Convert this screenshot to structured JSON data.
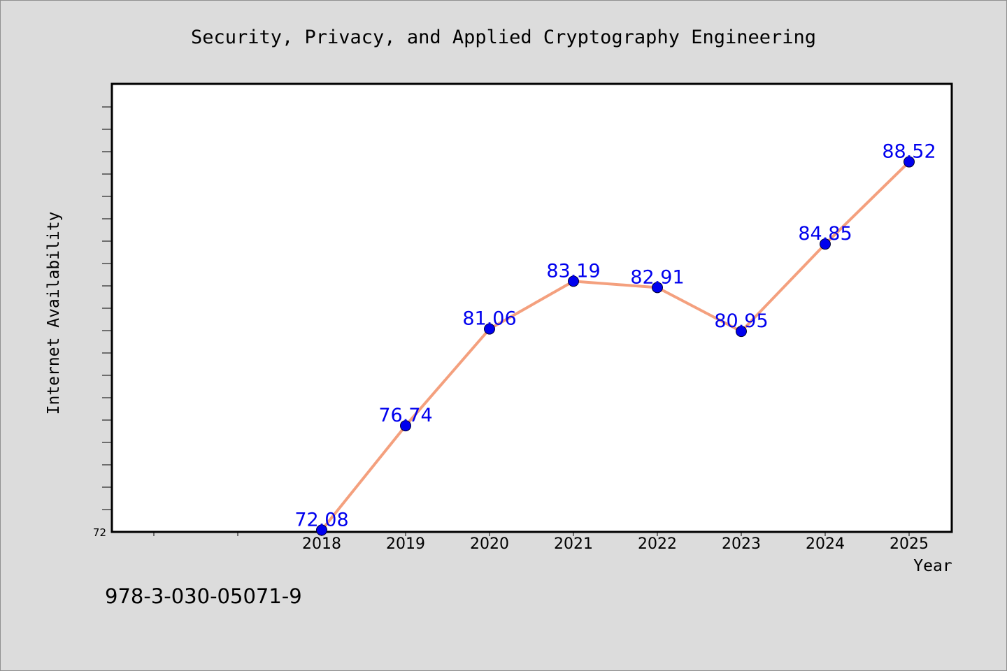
{
  "chart_data": {
    "type": "line",
    "title": "Security, Privacy, and Applied Cryptography Engineering",
    "xlabel": "Year",
    "ylabel": "Internet Availability",
    "categories": [
      "2018",
      "2019",
      "2020",
      "2021",
      "2022",
      "2023",
      "2024",
      "2025"
    ],
    "series": [
      {
        "values": [
          72.08,
          76.74,
          81.06,
          83.19,
          82.91,
          80.95,
          84.85,
          88.52
        ],
        "labels": [
          "72.08",
          "76.74",
          "81.06",
          "83.19",
          "82.91",
          "80.95",
          "84.85",
          "88.52"
        ]
      }
    ],
    "ylim": [
      72,
      92
    ],
    "ytick_labels": [
      "72"
    ],
    "grid": false,
    "legend": "none",
    "line_color": "#f4a07e",
    "marker_color": "#0000ee",
    "label_color": "#0000ee"
  },
  "footnote": "978-3-030-05071-9"
}
